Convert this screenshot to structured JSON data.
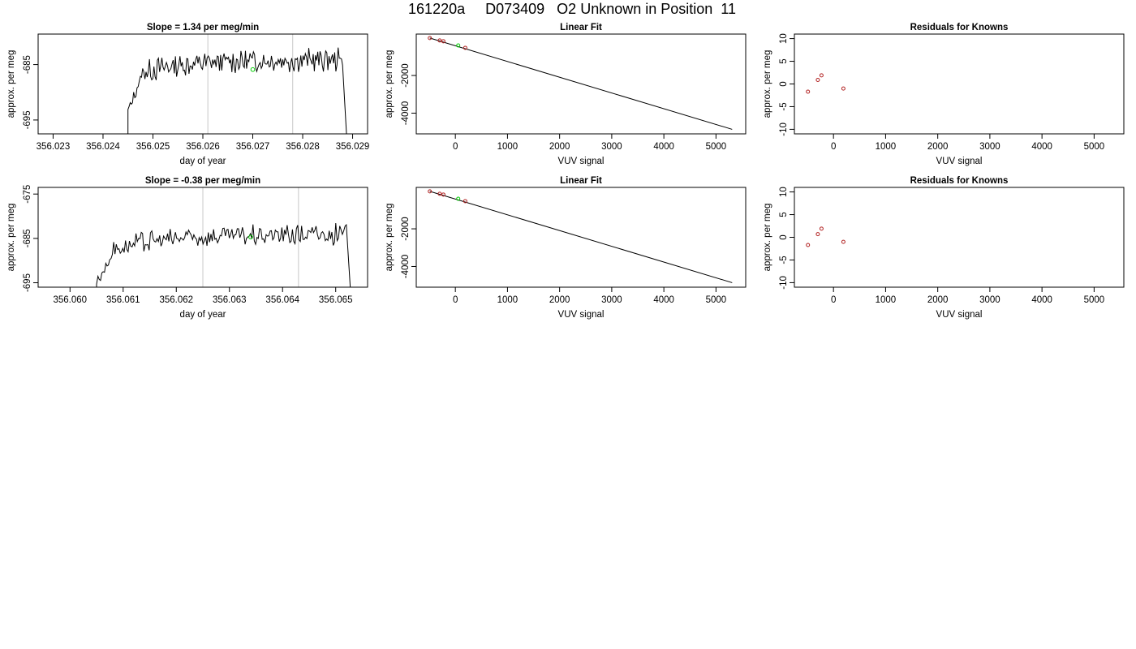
{
  "page_title": "161220a     D073409   O2 Unknown in Position  11",
  "colors": {
    "trace": "#000000",
    "marker_green": "#00cc00",
    "known_red": "#b22222",
    "vline": "#c8c8c8"
  },
  "chart_data": [
    {
      "id": "p1",
      "type": "line",
      "title": "Slope =  1.34  per meg/min",
      "xlabel": "day of year",
      "ylabel": "approx. per meg",
      "xlim": [
        356.0227,
        356.0293
      ],
      "ylim": [
        -697.5,
        -679.5
      ],
      "xticks": [
        "356.023",
        "356.024",
        "356.025",
        "356.026",
        "356.027",
        "356.028",
        "356.029"
      ],
      "xtick_values": [
        356.023,
        356.024,
        356.025,
        356.026,
        356.027,
        356.028,
        356.029
      ],
      "yticks": [
        "-685",
        "-695"
      ],
      "ytick_values": [
        -685,
        -695
      ],
      "vlines": [
        356.0261,
        356.0278
      ],
      "trace": {
        "x_start": 356.0245,
        "x_end": 356.0288,
        "base": -687.5,
        "rise": 3.0,
        "amp": 1.7,
        "drop_to": -698
      },
      "marker": {
        "x": 356.027,
        "y": -685.9
      }
    },
    {
      "id": "p2",
      "type": "scatter",
      "title": "Linear Fit",
      "xlabel": "VUV signal",
      "ylabel": "approx. per meg",
      "xlim": [
        -750,
        5570
      ],
      "ylim": [
        -5100,
        200
      ],
      "xticks": [
        "0",
        "1000",
        "2000",
        "3000",
        "4000",
        "5000"
      ],
      "xtick_values": [
        0,
        1000,
        2000,
        3000,
        4000,
        5000
      ],
      "yticks": [
        "-2000",
        "-4000"
      ],
      "ytick_values": [
        -2000,
        -4000
      ],
      "fit_line": {
        "x": [
          -490,
          5310
        ],
        "y": [
          -10,
          -4860
        ]
      },
      "knowns": {
        "x": [
          -490,
          -300,
          -230,
          190
        ],
        "y": [
          -10,
          -140,
          -180,
          -530
        ]
      },
      "unknown": {
        "x": 55,
        "y": -405
      }
    },
    {
      "id": "p3",
      "type": "scatter",
      "title": "Residuals for Knowns",
      "xlabel": "VUV signal",
      "ylabel": "approx. per meg",
      "xlim": [
        -750,
        5570
      ],
      "ylim": [
        -11,
        11
      ],
      "xticks": [
        "0",
        "1000",
        "2000",
        "3000",
        "4000",
        "5000"
      ],
      "xtick_values": [
        0,
        1000,
        2000,
        3000,
        4000,
        5000
      ],
      "yticks": [
        "-10",
        "-5",
        "0",
        "5",
        "10"
      ],
      "ytick_values": [
        -10,
        -5,
        0,
        5,
        10
      ],
      "points": {
        "x": [
          -490,
          -300,
          -230,
          190
        ],
        "y": [
          -1.7,
          0.9,
          1.9,
          -1.0
        ]
      }
    },
    {
      "id": "p4",
      "type": "line",
      "title": "Slope =  -0.38  per meg/min",
      "xlabel": "day of year",
      "ylabel": "approx. per meg",
      "xlim": [
        356.0594,
        356.0656
      ],
      "ylim": [
        -696,
        -673.5
      ],
      "xticks": [
        "356.060",
        "356.061",
        "356.062",
        "356.063",
        "356.064",
        "356.065"
      ],
      "xtick_values": [
        356.06,
        356.061,
        356.062,
        356.063,
        356.064,
        356.065
      ],
      "yticks": [
        "-675",
        "-685",
        "-695"
      ],
      "ytick_values": [
        -675,
        -685,
        -695
      ],
      "vlines": [
        356.0625,
        356.0643
      ],
      "trace": {
        "x_start": 356.0605,
        "x_end": 356.0652,
        "base": -689,
        "rise": 4.5,
        "amp": 2.0,
        "drop_to": -697
      },
      "marker": {
        "x": 356.0634,
        "y": -684.7
      }
    },
    {
      "id": "p5",
      "type": "scatter",
      "title": "Linear Fit",
      "xlabel": "VUV signal",
      "ylabel": "approx. per meg",
      "xlim": [
        -750,
        5570
      ],
      "ylim": [
        -5100,
        200
      ],
      "xticks": [
        "0",
        "1000",
        "2000",
        "3000",
        "4000",
        "5000"
      ],
      "xtick_values": [
        0,
        1000,
        2000,
        3000,
        4000,
        5000
      ],
      "yticks": [
        "-2000",
        "-4000"
      ],
      "ytick_values": [
        -2000,
        -4000
      ],
      "fit_line": {
        "x": [
          -490,
          5310
        ],
        "y": [
          -10,
          -4860
        ]
      },
      "knowns": {
        "x": [
          -490,
          -300,
          -230,
          190
        ],
        "y": [
          -10,
          -140,
          -180,
          -530
        ]
      },
      "unknown": {
        "x": 55,
        "y": -405
      }
    },
    {
      "id": "p6",
      "type": "scatter",
      "title": "Residuals for Knowns",
      "xlabel": "VUV signal",
      "ylabel": "approx. per meg",
      "xlim": [
        -750,
        5570
      ],
      "ylim": [
        -11,
        11
      ],
      "xticks": [
        "0",
        "1000",
        "2000",
        "3000",
        "4000",
        "5000"
      ],
      "xtick_values": [
        0,
        1000,
        2000,
        3000,
        4000,
        5000
      ],
      "yticks": [
        "-10",
        "-5",
        "0",
        "5",
        "10"
      ],
      "ytick_values": [
        -10,
        -5,
        0,
        5,
        10
      ],
      "points": {
        "x": [
          -490,
          -300,
          -230,
          190
        ],
        "y": [
          -1.7,
          0.7,
          1.9,
          -1.0
        ]
      }
    }
  ]
}
